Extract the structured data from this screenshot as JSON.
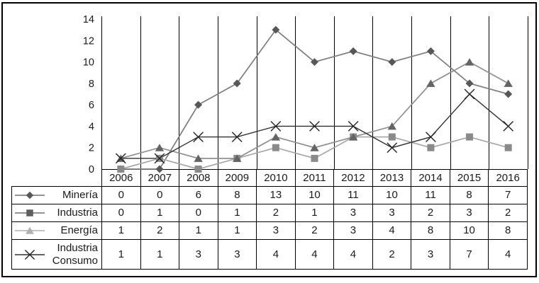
{
  "chart_data": {
    "type": "line",
    "title": "",
    "xlabel": "",
    "ylabel": "",
    "x": [
      "2006",
      "2007",
      "2008",
      "2009",
      "2010",
      "2011",
      "2012",
      "2013",
      "2014",
      "2015",
      "2016"
    ],
    "series": [
      {
        "name": "Minería",
        "marker": "diamond",
        "values": [
          0,
          0,
          6,
          8,
          13,
          10,
          11,
          10,
          11,
          8,
          7
        ],
        "marker_color": "#575757",
        "line_color": "#7d7d7d",
        "legend_marker_color": "#575757",
        "legend_line_color": "#6e6e6e"
      },
      {
        "name": "Industria",
        "marker": "square",
        "values": [
          0,
          1,
          0,
          1,
          2,
          1,
          3,
          3,
          2,
          3,
          2
        ],
        "marker_color": "#8a8a8a",
        "line_color": "#a6a6a6",
        "legend_marker_color": "#5e5e5e",
        "legend_line_color": "#6e6e6e"
      },
      {
        "name": "Energía",
        "marker": "triangle",
        "values": [
          1,
          2,
          1,
          1,
          3,
          2,
          3,
          4,
          8,
          10,
          8
        ],
        "marker_color": "#646464",
        "line_color": "#8f8f8f",
        "legend_marker_color": "#b0b0b0",
        "legend_line_color": "#aeaeae"
      },
      {
        "name": "Industria Consumo",
        "marker": "x",
        "values": [
          1,
          1,
          3,
          3,
          4,
          4,
          4,
          2,
          3,
          7,
          4
        ],
        "marker_color": "#222222",
        "line_color": "#303030",
        "legend_marker_color": "#222222",
        "legend_line_color": "#303030"
      }
    ],
    "ylim": [
      0,
      14
    ],
    "yticks": [
      0,
      2,
      4,
      6,
      8,
      10,
      12,
      14
    ],
    "grid": "vertical-only",
    "legend_position": "table-left-column",
    "text_color": "#1a1a1a",
    "border_color": "#000000",
    "background_color": "#ffffff"
  }
}
